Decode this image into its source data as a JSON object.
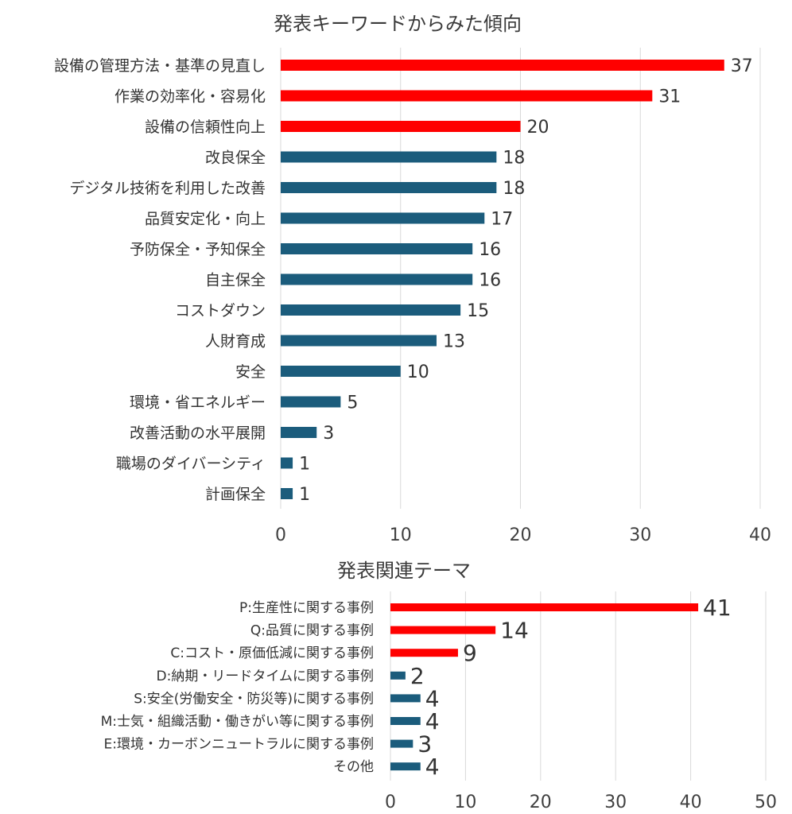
{
  "chart_data": [
    {
      "type": "bar",
      "orientation": "horizontal",
      "title": "発表キーワードからみた傾向",
      "categories": [
        "設備の管理方法・基準の見直し",
        "作業の効率化・容易化",
        "設備の信頼性向上",
        "改良保全",
        "デジタル技術を利用した改善",
        "品質安定化・向上",
        "予防保全・予知保全",
        "自主保全",
        "コストダウン",
        "人財育成",
        "安全",
        "環境・省エネルギー",
        "改善活動の水平展開",
        "職場のダイバーシティ",
        "計画保全"
      ],
      "values": [
        37,
        31,
        20,
        18,
        18,
        17,
        16,
        16,
        15,
        13,
        10,
        5,
        3,
        1,
        1
      ],
      "highlight_count": 3,
      "xlim": [
        0,
        40
      ],
      "xticks": [
        "0",
        "10",
        "20",
        "30",
        "40"
      ],
      "grid": true,
      "colors": {
        "highlight": "#ff0000",
        "normal": "#1b5c7c"
      }
    },
    {
      "type": "bar",
      "orientation": "horizontal",
      "title": "発表関連テーマ",
      "categories": [
        "P:生産性に関する事例",
        "Q:品質に関する事例",
        "C:コスト・原価低減に関する事例",
        "D:納期・リードタイムに関する事例",
        "S:安全(労働安全・防災等)に関する事例",
        "M:士気・組織活動・働きがい等に関する事例",
        "E:環境・カーボンニュートラルに関する事例",
        "その他"
      ],
      "values": [
        41,
        14,
        9,
        2,
        4,
        4,
        3,
        4
      ],
      "highlight_count": 3,
      "xlim": [
        0,
        50
      ],
      "xticks": [
        "0",
        "10",
        "20",
        "30",
        "40",
        "50"
      ],
      "grid": true,
      "colors": {
        "highlight": "#ff0000",
        "normal": "#1b5c7c"
      }
    }
  ]
}
